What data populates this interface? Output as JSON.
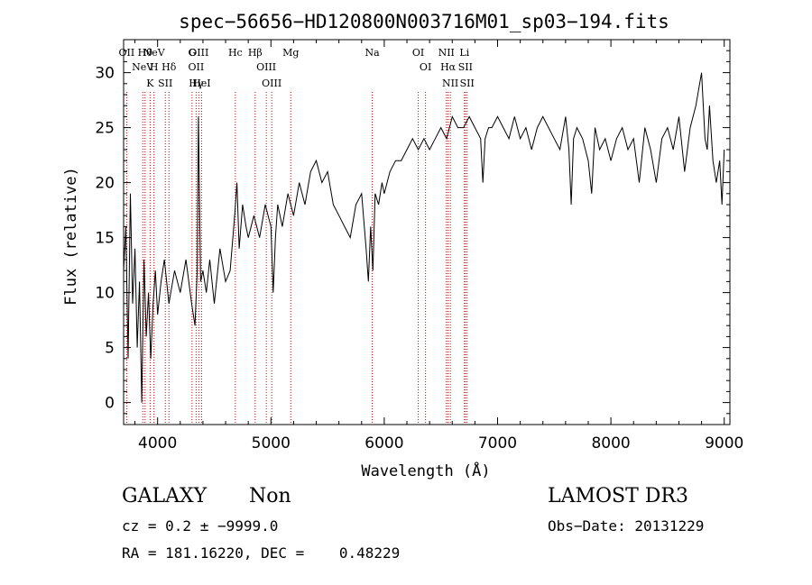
{
  "chart_data": {
    "type": "line",
    "title": "spec−56656−HD120800N003716M01_sp03−194.fits",
    "xlabel": "Wavelength (Å)",
    "ylabel": "Flux (relative)",
    "xlim": [
      3700,
      9050
    ],
    "ylim": [
      -2,
      33
    ],
    "xticks": [
      4000,
      5000,
      6000,
      7000,
      8000,
      9000
    ],
    "yticks": [
      0,
      5,
      10,
      15,
      20,
      25,
      30
    ],
    "grid": false,
    "legend": "none",
    "line_color": "#000000",
    "marker_color": "#cc0000",
    "series": [
      {
        "x": [
          3700,
          3720,
          3740,
          3760,
          3780,
          3800,
          3820,
          3840,
          3860,
          3880,
          3900,
          3920,
          3940,
          3960,
          3980,
          4000,
          4030,
          4060,
          4100,
          4150,
          4200,
          4250,
          4300,
          4330,
          4350,
          4360,
          4380,
          4400,
          4430,
          4460,
          4500,
          4550,
          4600,
          4640,
          4680,
          4700,
          4720,
          4750,
          4780,
          4800,
          4850,
          4900,
          4950,
          5000,
          5020,
          5040,
          5060,
          5100,
          5150,
          5200,
          5250,
          5300,
          5350,
          5400,
          5450,
          5500,
          5550,
          5600,
          5650,
          5700,
          5750,
          5800,
          5840,
          5860,
          5880,
          5900,
          5920,
          5950,
          5980,
          6000,
          6050,
          6100,
          6150,
          6200,
          6250,
          6300,
          6350,
          6400,
          6450,
          6500,
          6550,
          6600,
          6650,
          6700,
          6750,
          6800,
          6850,
          6870,
          6890,
          6920,
          6950,
          7000,
          7050,
          7100,
          7150,
          7200,
          7250,
          7300,
          7350,
          7400,
          7450,
          7500,
          7550,
          7600,
          7630,
          7650,
          7670,
          7700,
          7750,
          7800,
          7830,
          7860,
          7900,
          7950,
          8000,
          8050,
          8100,
          8150,
          8200,
          8250,
          8300,
          8350,
          8400,
          8450,
          8500,
          8550,
          8600,
          8650,
          8700,
          8750,
          8800,
          8830,
          8850,
          8870,
          8900,
          8930,
          8960,
          8980,
          9000
        ],
        "y": [
          12,
          16,
          4,
          19,
          9,
          14,
          5,
          11,
          0,
          13,
          6,
          10,
          4,
          9,
          12,
          8,
          11,
          13,
          9,
          12,
          10,
          13,
          9,
          7,
          12,
          26,
          11,
          12,
          10,
          13,
          9,
          14,
          11,
          12,
          17,
          20,
          14,
          18,
          16,
          15,
          17,
          15,
          18,
          16,
          10,
          15,
          18,
          16,
          19,
          17,
          20,
          18,
          21,
          22,
          20,
          21,
          18,
          17,
          16,
          15,
          18,
          19,
          14,
          11,
          16,
          12,
          19,
          18,
          20,
          19,
          21,
          22,
          22,
          23,
          24,
          23,
          24,
          23,
          24,
          25,
          24,
          26,
          25,
          25,
          26,
          25,
          24,
          20,
          24,
          25,
          25,
          26,
          25,
          24,
          26,
          24,
          25,
          23,
          25,
          26,
          25,
          24,
          23,
          26,
          23,
          18,
          24,
          25,
          24,
          22,
          19,
          25,
          23,
          24,
          22,
          24,
          25,
          23,
          24,
          20,
          25,
          23,
          20,
          24,
          25,
          23,
          26,
          21,
          25,
          27,
          30,
          24,
          23,
          27,
          22,
          20,
          22,
          18,
          23
        ]
      }
    ],
    "line_markers": [
      {
        "x": 3869,
        "label": "NeV"
      },
      {
        "x": 3968,
        "label": "NeV"
      },
      {
        "x": 3727,
        "label": "OII"
      },
      {
        "x": 4340,
        "label": "OII"
      },
      {
        "x": 3889,
        "label": "Hθ"
      },
      {
        "x": 4388,
        "label": "HeI"
      },
      {
        "x": 3934,
        "label": "K"
      },
      {
        "x": 3968,
        "label": "H"
      },
      {
        "x": 4686,
        "label": "Hc"
      },
      {
        "x": 4100,
        "label": "Hδ"
      },
      {
        "x": 4068,
        "label": "SII"
      },
      {
        "x": 4304,
        "label": "G"
      },
      {
        "x": 4363,
        "label": "OIII"
      },
      {
        "x": 4340,
        "label": "Hγ"
      },
      {
        "x": 4861,
        "label": "Hβ"
      },
      {
        "x": 4959,
        "label": "OIII"
      },
      {
        "x": 5007,
        "label": "OIII"
      },
      {
        "x": 5175,
        "label": "Mg"
      },
      {
        "x": 5894,
        "label": "Na"
      },
      {
        "x": 6300,
        "label": "OI"
      },
      {
        "x": 6364,
        "label": "OI"
      },
      {
        "x": 6548,
        "label": "NII"
      },
      {
        "x": 6563,
        "label": "Hα"
      },
      {
        "x": 6583,
        "label": "NII"
      },
      {
        "x": 6708,
        "label": "Li"
      },
      {
        "x": 6716,
        "label": "SII"
      },
      {
        "x": 6731,
        "label": "SII"
      }
    ]
  },
  "info": {
    "object_class": "GALAXY",
    "object_subclass": "Non",
    "survey": "LAMOST DR3",
    "redshift_line": "cz = 0.2 ± −9999.0",
    "obs_date_line": "Obs−Date: 20131229",
    "coords_line": "RA = 181.16220, DEC =    0.48229"
  }
}
